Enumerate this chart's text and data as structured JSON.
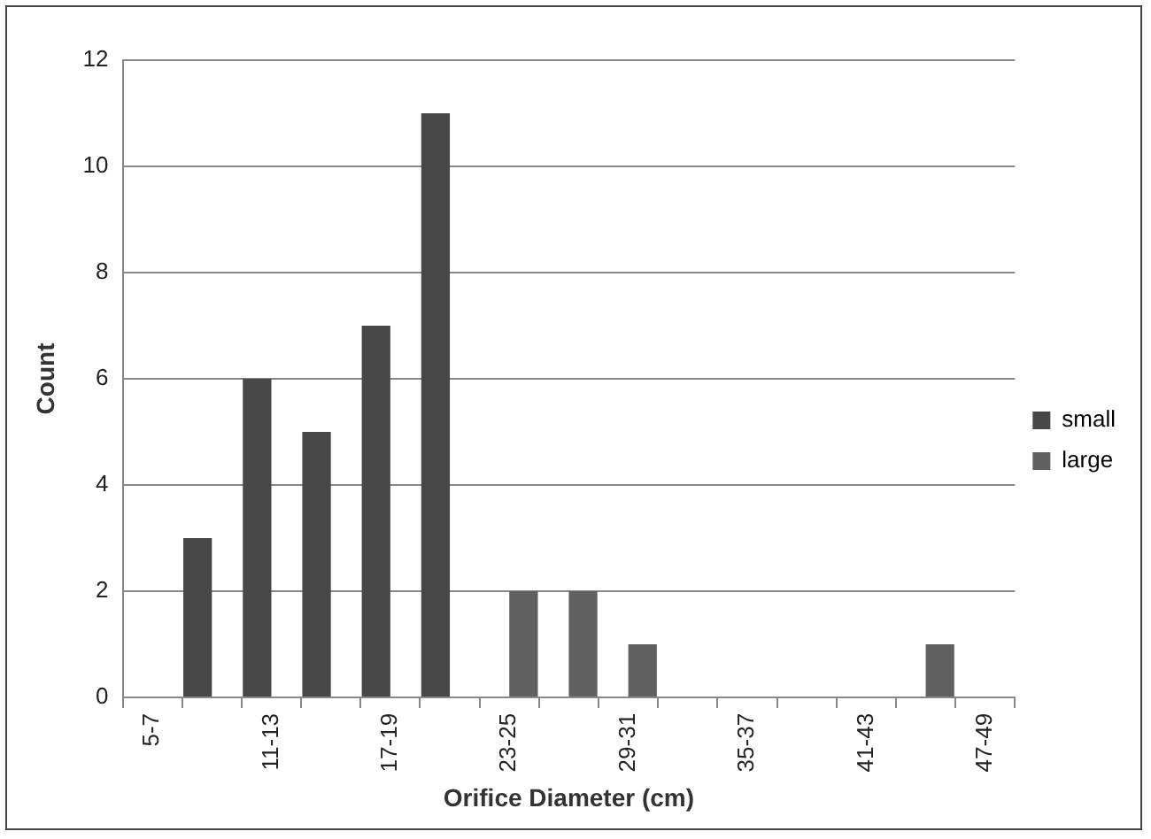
{
  "chart_data": {
    "type": "bar",
    "xlabel": "Orifice Diameter (cm)",
    "ylabel": "Count",
    "categories": [
      "5-7",
      null,
      "11-13",
      null,
      "17-19",
      null,
      "23-25",
      null,
      "29-31",
      null,
      "35-37",
      null,
      "41-43",
      null,
      "47-49"
    ],
    "series": [
      {
        "name": "small",
        "color": "#474747",
        "values": [
          null,
          3,
          6,
          5,
          7,
          11,
          null,
          null,
          null,
          null,
          null,
          null,
          null,
          null,
          null
        ]
      },
      {
        "name": "large",
        "color": "#606060",
        "values": [
          null,
          null,
          null,
          null,
          null,
          null,
          2,
          2,
          1,
          null,
          null,
          null,
          null,
          1,
          null
        ]
      }
    ],
    "ylim": [
      0,
      12
    ],
    "yticks": [
      0,
      2,
      4,
      6,
      8,
      10,
      12
    ],
    "grid": "y",
    "legend": "right"
  }
}
